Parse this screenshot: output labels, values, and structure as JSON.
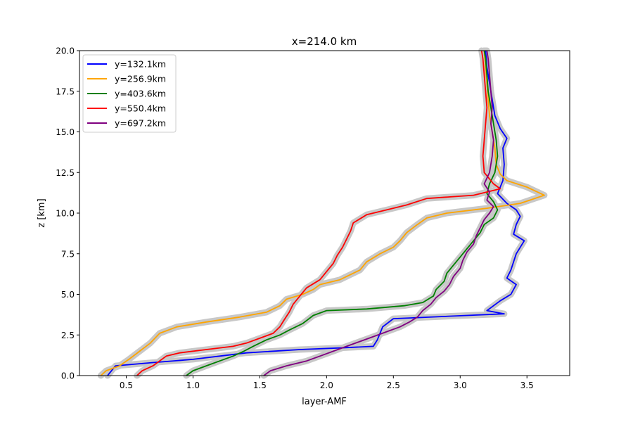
{
  "chart_data": {
    "type": "line",
    "title": "x=214.0 km",
    "xlabel": "layer-AMF",
    "ylabel": "z [km]",
    "xlim": [
      0.15,
      3.82
    ],
    "ylim": [
      0,
      20
    ],
    "xticks": [
      "0.5",
      "1.0",
      "1.5",
      "2.0",
      "2.5",
      "3.0",
      "3.5"
    ],
    "yticks": [
      "0.0",
      "2.5",
      "5.0",
      "7.5",
      "10.0",
      "12.5",
      "15.0",
      "17.5",
      "20.0"
    ],
    "grid": false,
    "legend_position": "top-left",
    "uncertainty_band_color": "#c8c8c8",
    "series": [
      {
        "name": "y=132.1km",
        "color": "#0000ff",
        "points": [
          [
            0.36,
            0
          ],
          [
            0.42,
            0.6
          ],
          [
            0.7,
            0.8
          ],
          [
            1.0,
            1.0
          ],
          [
            1.2,
            1.2
          ],
          [
            1.4,
            1.4
          ],
          [
            1.8,
            1.6
          ],
          [
            2.1,
            1.7
          ],
          [
            2.35,
            1.8
          ],
          [
            2.38,
            2.2
          ],
          [
            2.42,
            3.0
          ],
          [
            2.5,
            3.5
          ],
          [
            3.05,
            3.7
          ],
          [
            3.33,
            3.8
          ],
          [
            3.2,
            4.0
          ],
          [
            3.25,
            4.3
          ],
          [
            3.3,
            4.6
          ],
          [
            3.38,
            5.0
          ],
          [
            3.42,
            5.6
          ],
          [
            3.35,
            6.0
          ],
          [
            3.38,
            6.5
          ],
          [
            3.4,
            7.0
          ],
          [
            3.42,
            7.5
          ],
          [
            3.48,
            8.3
          ],
          [
            3.4,
            8.7
          ],
          [
            3.42,
            9.3
          ],
          [
            3.45,
            9.8
          ],
          [
            3.42,
            10.2
          ],
          [
            3.35,
            10.6
          ],
          [
            3.28,
            11.2
          ],
          [
            3.32,
            12.0
          ],
          [
            3.33,
            13.0
          ],
          [
            3.32,
            14.0
          ],
          [
            3.35,
            14.6
          ],
          [
            3.3,
            15.2
          ],
          [
            3.26,
            16.0
          ],
          [
            3.24,
            17.0
          ],
          [
            3.22,
            18.0
          ],
          [
            3.2,
            19.0
          ],
          [
            3.19,
            20.0
          ]
        ]
      },
      {
        "name": "y=256.9km",
        "color": "#ffa500",
        "points": [
          [
            0.31,
            0
          ],
          [
            0.35,
            0.3
          ],
          [
            0.45,
            0.6
          ],
          [
            0.52,
            1.0
          ],
          [
            0.6,
            1.5
          ],
          [
            0.68,
            2.0
          ],
          [
            0.75,
            2.6
          ],
          [
            0.88,
            3.0
          ],
          [
            1.1,
            3.3
          ],
          [
            1.35,
            3.6
          ],
          [
            1.55,
            3.9
          ],
          [
            1.65,
            4.3
          ],
          [
            1.7,
            4.7
          ],
          [
            1.82,
            5.0
          ],
          [
            1.9,
            5.3
          ],
          [
            1.95,
            5.6
          ],
          [
            2.1,
            5.9
          ],
          [
            2.25,
            6.5
          ],
          [
            2.3,
            7.0
          ],
          [
            2.4,
            7.5
          ],
          [
            2.5,
            7.9
          ],
          [
            2.55,
            8.3
          ],
          [
            2.6,
            8.8
          ],
          [
            2.68,
            9.3
          ],
          [
            2.75,
            9.7
          ],
          [
            2.9,
            10.0
          ],
          [
            3.2,
            10.3
          ],
          [
            3.45,
            10.6
          ],
          [
            3.63,
            11.1
          ],
          [
            3.5,
            11.6
          ],
          [
            3.35,
            12.0
          ],
          [
            3.3,
            12.4
          ],
          [
            3.27,
            13.0
          ],
          [
            3.26,
            14.0
          ],
          [
            3.24,
            15.0
          ],
          [
            3.22,
            16.0
          ],
          [
            3.21,
            17.0
          ],
          [
            3.2,
            18.0
          ],
          [
            3.19,
            19.0
          ],
          [
            3.18,
            20.0
          ]
        ]
      },
      {
        "name": "y=403.6km",
        "color": "#008000",
        "points": [
          [
            0.95,
            0
          ],
          [
            1.0,
            0.3
          ],
          [
            1.1,
            0.6
          ],
          [
            1.2,
            0.9
          ],
          [
            1.3,
            1.2
          ],
          [
            1.38,
            1.5
          ],
          [
            1.45,
            1.8
          ],
          [
            1.55,
            2.2
          ],
          [
            1.65,
            2.5
          ],
          [
            1.72,
            2.8
          ],
          [
            1.82,
            3.2
          ],
          [
            1.9,
            3.7
          ],
          [
            2.0,
            4.0
          ],
          [
            2.3,
            4.1
          ],
          [
            2.58,
            4.3
          ],
          [
            2.72,
            4.5
          ],
          [
            2.8,
            4.9
          ],
          [
            2.82,
            5.3
          ],
          [
            2.88,
            5.8
          ],
          [
            2.9,
            6.3
          ],
          [
            2.95,
            6.8
          ],
          [
            3.0,
            7.3
          ],
          [
            3.05,
            7.8
          ],
          [
            3.1,
            8.3
          ],
          [
            3.15,
            8.8
          ],
          [
            3.18,
            9.3
          ],
          [
            3.25,
            9.7
          ],
          [
            3.28,
            10.2
          ],
          [
            3.25,
            10.7
          ],
          [
            3.2,
            11.2
          ],
          [
            3.22,
            11.8
          ],
          [
            3.26,
            12.5
          ],
          [
            3.28,
            13.5
          ],
          [
            3.27,
            14.5
          ],
          [
            3.25,
            15.5
          ],
          [
            3.23,
            16.5
          ],
          [
            3.21,
            17.5
          ],
          [
            3.2,
            18.5
          ],
          [
            3.19,
            19.5
          ],
          [
            3.18,
            20.0
          ]
        ]
      },
      {
        "name": "y=550.4km",
        "color": "#ff0000",
        "points": [
          [
            0.58,
            0
          ],
          [
            0.62,
            0.3
          ],
          [
            0.7,
            0.6
          ],
          [
            0.75,
            0.9
          ],
          [
            0.8,
            1.2
          ],
          [
            0.9,
            1.4
          ],
          [
            1.1,
            1.6
          ],
          [
            1.3,
            1.8
          ],
          [
            1.4,
            2.0
          ],
          [
            1.5,
            2.3
          ],
          [
            1.6,
            2.6
          ],
          [
            1.65,
            3.0
          ],
          [
            1.68,
            3.4
          ],
          [
            1.72,
            3.9
          ],
          [
            1.75,
            4.4
          ],
          [
            1.8,
            4.9
          ],
          [
            1.85,
            5.4
          ],
          [
            1.95,
            5.9
          ],
          [
            2.0,
            6.4
          ],
          [
            2.05,
            6.9
          ],
          [
            2.08,
            7.4
          ],
          [
            2.12,
            7.9
          ],
          [
            2.15,
            8.4
          ],
          [
            2.18,
            8.9
          ],
          [
            2.2,
            9.4
          ],
          [
            2.3,
            9.9
          ],
          [
            2.45,
            10.2
          ],
          [
            2.6,
            10.5
          ],
          [
            2.75,
            10.9
          ],
          [
            3.1,
            11.1
          ],
          [
            3.2,
            11.3
          ],
          [
            3.3,
            11.5
          ],
          [
            3.25,
            11.8
          ],
          [
            3.18,
            12.5
          ],
          [
            3.17,
            13.5
          ],
          [
            3.18,
            14.5
          ],
          [
            3.19,
            15.5
          ],
          [
            3.2,
            16.5
          ],
          [
            3.19,
            17.5
          ],
          [
            3.18,
            18.5
          ],
          [
            3.17,
            19.5
          ],
          [
            3.16,
            20.0
          ]
        ]
      },
      {
        "name": "y=697.2km",
        "color": "#800080",
        "points": [
          [
            1.53,
            0
          ],
          [
            1.58,
            0.3
          ],
          [
            1.7,
            0.6
          ],
          [
            1.85,
            0.9
          ],
          [
            1.95,
            1.2
          ],
          [
            2.05,
            1.5
          ],
          [
            2.15,
            1.8
          ],
          [
            2.25,
            2.1
          ],
          [
            2.35,
            2.4
          ],
          [
            2.45,
            2.7
          ],
          [
            2.55,
            3.0
          ],
          [
            2.62,
            3.3
          ],
          [
            2.68,
            3.6
          ],
          [
            2.72,
            4.0
          ],
          [
            2.78,
            4.4
          ],
          [
            2.82,
            4.8
          ],
          [
            2.88,
            5.2
          ],
          [
            2.92,
            5.6
          ],
          [
            2.95,
            6.1
          ],
          [
            3.0,
            6.6
          ],
          [
            3.02,
            7.1
          ],
          [
            3.05,
            7.6
          ],
          [
            3.1,
            8.1
          ],
          [
            3.12,
            8.6
          ],
          [
            3.15,
            9.1
          ],
          [
            3.18,
            9.6
          ],
          [
            3.22,
            10.0
          ],
          [
            3.25,
            10.4
          ],
          [
            3.2,
            10.8
          ],
          [
            3.22,
            11.3
          ],
          [
            3.18,
            11.8
          ],
          [
            3.22,
            12.5
          ],
          [
            3.24,
            13.5
          ],
          [
            3.25,
            14.5
          ],
          [
            3.23,
            15.5
          ],
          [
            3.24,
            16.5
          ],
          [
            3.23,
            17.5
          ],
          [
            3.22,
            18.5
          ],
          [
            3.21,
            19.5
          ],
          [
            3.2,
            20.0
          ]
        ]
      }
    ]
  }
}
